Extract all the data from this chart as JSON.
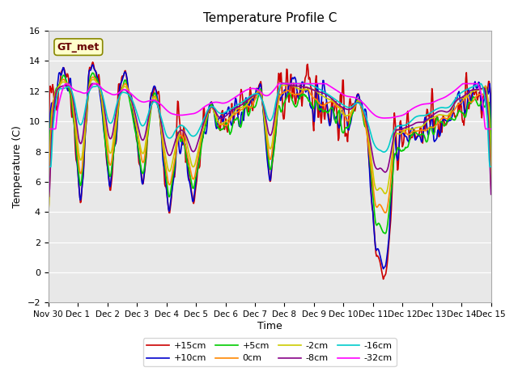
{
  "title": "Temperature Profile C",
  "xlabel": "Time",
  "ylabel": "Temperature (C)",
  "ylim": [
    -2,
    16
  ],
  "yticks": [
    -2,
    0,
    2,
    4,
    6,
    8,
    10,
    12,
    14,
    16
  ],
  "xtick_labels": [
    "Nov 30",
    "Dec 1",
    "Dec 2",
    "Dec 3",
    "Dec 4",
    "Dec 5",
    "Dec 6",
    "Dec 7",
    "Dec 8",
    "Dec 9",
    "Dec 10",
    "Dec 11",
    "Dec 12",
    "Dec 13",
    "Dec 14",
    "Dec 15"
  ],
  "series_labels": [
    "+15cm",
    "+10cm",
    "+5cm",
    "0cm",
    "-2cm",
    "-8cm",
    "-16cm",
    "-32cm"
  ],
  "series_colors": [
    "#cc0000",
    "#0000cc",
    "#00cc00",
    "#ff8800",
    "#cccc00",
    "#880088",
    "#00cccc",
    "#ff00ff"
  ],
  "gt_met_label": "GT_met",
  "plot_bg_color": "#e8e8e8"
}
